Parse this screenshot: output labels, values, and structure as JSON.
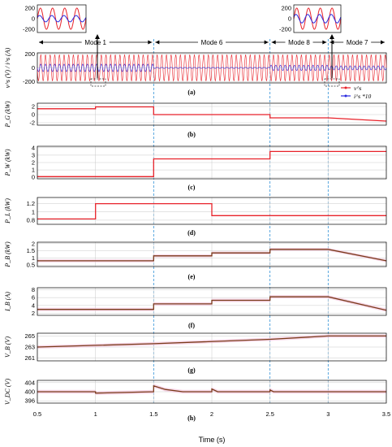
{
  "colors": {
    "red": "#e8222a",
    "blue": "#2a2adf",
    "brown": "#7a3b1a",
    "band": "#f4c6de",
    "divider": "#2f8fd6"
  },
  "chart_data": {
    "type": "line",
    "xlabel": "Time (s)",
    "xlim": [
      0.5,
      3.5
    ],
    "xticks": [
      "0.5",
      "1",
      "1.5",
      "2",
      "2.5",
      "3",
      "3.5"
    ],
    "modes": [
      {
        "label": "Mode 1",
        "x": [
          0.5,
          1.5
        ]
      },
      {
        "label": "Mode 6",
        "x": [
          1.5,
          2.5
        ]
      },
      {
        "label": "Mode 8",
        "x": [
          2.5,
          3.0
        ]
      },
      {
        "label": "Mode 7",
        "x": [
          3.0,
          3.5
        ]
      }
    ],
    "dividers": [
      1.5,
      2.5,
      3.0
    ],
    "insets": [
      {
        "yticks": [
          "200",
          "0",
          "-200"
        ],
        "series": [
          {
            "name": "v^s",
            "amplitude": 200,
            "cycles": 4
          },
          {
            "name": "i^s*10",
            "amplitude": 60,
            "cycles": 4
          }
        ]
      },
      {
        "yticks": [
          "200",
          "0",
          "-200"
        ],
        "series": [
          {
            "name": "v^s",
            "amplitude": 200,
            "cycles": 4
          },
          {
            "name": "i^s*10",
            "amplitude": 80,
            "cycles": 4
          }
        ]
      }
    ],
    "panels": [
      {
        "id": "a",
        "label": "(a)",
        "ylabel": "v^s (V) / i^s (A)",
        "ylim": [
          -220,
          220
        ],
        "yticks": [
          "200",
          "0",
          "-200"
        ],
        "legend": [
          {
            "name": "v^s"
          },
          {
            "name": "i^s *10"
          }
        ]
      },
      {
        "id": "b",
        "label": "(b)",
        "ylabel": "P_G (kW)",
        "ylim": [
          -2.6,
          2.8
        ],
        "yticks": [
          "2",
          "0",
          "-2"
        ],
        "series": [
          {
            "name": "P_G",
            "points": [
              [
                0.5,
                1.45
              ],
              [
                1.0,
                1.45
              ],
              [
                1.0,
                1.9
              ],
              [
                1.5,
                1.9
              ],
              [
                1.5,
                0.0
              ],
              [
                2.5,
                0.0
              ],
              [
                2.5,
                -0.8
              ],
              [
                3.0,
                -0.8
              ],
              [
                3.5,
                -1.6
              ]
            ]
          }
        ]
      },
      {
        "id": "c",
        "label": "(c)",
        "ylabel": "P_W (kW)",
        "ylim": [
          -0.2,
          4.2
        ],
        "yticks": [
          "4",
          "3",
          "2",
          "1",
          "0"
        ],
        "series": [
          {
            "name": "P_W",
            "points": [
              [
                0.5,
                0.1
              ],
              [
                1.5,
                0.1
              ],
              [
                1.5,
                2.5
              ],
              [
                2.5,
                2.5
              ],
              [
                2.5,
                3.5
              ],
              [
                3.5,
                3.5
              ]
            ]
          }
        ]
      },
      {
        "id": "d",
        "label": "(d)",
        "ylabel": "P_L (kW)",
        "ylim": [
          0.7,
          1.35
        ],
        "yticks": [
          "1.2",
          "1",
          "0.8"
        ],
        "series": [
          {
            "name": "P_L",
            "points": [
              [
                0.5,
                0.83
              ],
              [
                1.0,
                0.83
              ],
              [
                1.0,
                1.2
              ],
              [
                2.0,
                1.2
              ],
              [
                2.0,
                0.91
              ],
              [
                3.5,
                0.91
              ]
            ]
          }
        ]
      },
      {
        "id": "e",
        "label": "(e)",
        "ylabel": "P_B (kW)",
        "ylim": [
          0.4,
          2.1
        ],
        "yticks": [
          "2",
          "1.5",
          "1",
          "0.5"
        ],
        "series": [
          {
            "name": "P_B",
            "points": [
              [
                0.5,
                0.8
              ],
              [
                1.5,
                0.8
              ],
              [
                1.5,
                1.15
              ],
              [
                2.0,
                1.15
              ],
              [
                2.0,
                1.35
              ],
              [
                2.5,
                1.35
              ],
              [
                2.5,
                1.6
              ],
              [
                3.0,
                1.6
              ],
              [
                3.5,
                0.8
              ]
            ]
          }
        ]
      },
      {
        "id": "f",
        "label": "(f)",
        "ylabel": "I_B (A)",
        "ylim": [
          1.5,
          8.5
        ],
        "yticks": [
          "8",
          "6",
          "4",
          "2"
        ],
        "series": [
          {
            "name": "I_B",
            "points": [
              [
                0.5,
                3.0
              ],
              [
                1.5,
                3.0
              ],
              [
                1.5,
                4.4
              ],
              [
                2.0,
                4.4
              ],
              [
                2.0,
                5.3
              ],
              [
                2.5,
                5.3
              ],
              [
                2.5,
                6.2
              ],
              [
                3.0,
                6.2
              ],
              [
                3.5,
                2.8
              ]
            ]
          }
        ]
      },
      {
        "id": "g",
        "label": "(g)",
        "ylabel": "V_B (V)",
        "ylim": [
          260.5,
          265.5
        ],
        "yticks": [
          "265",
          "263",
          "261"
        ],
        "series": [
          {
            "name": "V_B",
            "points": [
              [
                0.5,
                263.0
              ],
              [
                1.5,
                263.6
              ],
              [
                2.5,
                264.4
              ],
              [
                3.0,
                265.0
              ],
              [
                3.5,
                265.0
              ]
            ]
          }
        ]
      },
      {
        "id": "h",
        "label": "(h)",
        "ylabel": "V_DC (V)",
        "ylim": [
          395,
          405
        ],
        "yticks": [
          "404",
          "400",
          "396"
        ],
        "series": [
          {
            "name": "V_DC",
            "points": [
              [
                0.5,
                400
              ],
              [
                1.0,
                400
              ],
              [
                1.0,
                399.4
              ],
              [
                1.5,
                400
              ],
              [
                1.5,
                402.6
              ],
              [
                1.6,
                401
              ],
              [
                1.75,
                400
              ],
              [
                2.0,
                400
              ],
              [
                2.0,
                401.2
              ],
              [
                2.05,
                400
              ],
              [
                2.5,
                400
              ],
              [
                2.5,
                400.8
              ],
              [
                2.53,
                400
              ],
              [
                3.5,
                400
              ]
            ]
          }
        ]
      }
    ]
  }
}
